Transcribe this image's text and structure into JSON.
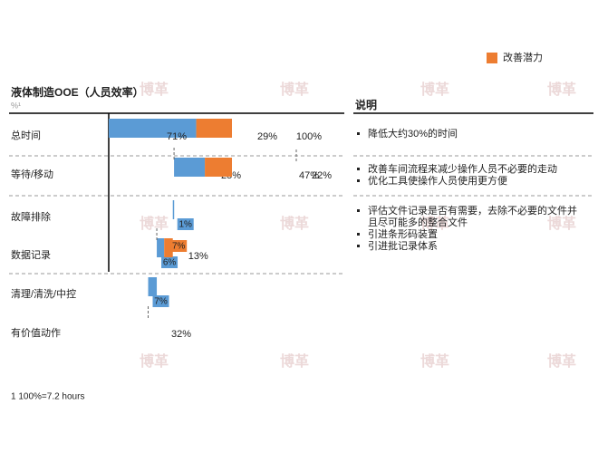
{
  "chart_data": {
    "type": "waterfall",
    "title": "液体制造OOE（人员效率）",
    "unit": "%¹",
    "categories": [
      "总时间",
      "等待/移动",
      "故障排除",
      "数据记录",
      "清理/清洗/中控",
      "有价值动作"
    ],
    "series": [
      {
        "color": "#5b9bd5",
        "values": [
          71,
          25,
          1,
          6,
          7,
          null
        ],
        "value_labels": [
          "71%",
          "25%",
          "1%",
          "6%",
          "7%",
          null
        ]
      },
      {
        "name": "改善潜力",
        "color": "#ed7d31",
        "values": [
          29,
          22,
          null,
          7,
          null,
          null
        ],
        "value_labels": [
          "29%",
          "22%",
          null,
          "7%",
          null,
          null
        ]
      }
    ],
    "totals": [
      100,
      47,
      null,
      13,
      null,
      32
    ],
    "total_labels": [
      "100%",
      "47%",
      null,
      "13%",
      null,
      "32%"
    ],
    "xlim": [
      0,
      100
    ],
    "footnote": "1 100%=7.2 hours"
  },
  "notes": {
    "title": "说明",
    "groups": [
      [
        "降低大约30%的时间"
      ],
      [
        "改善车间流程来减少操作人员不必要的走动",
        "优化工具使操作人员使用更方便"
      ],
      [
        "评估文件记录是否有需要，去除不必要的文件并",
        "且尽可能多的整合文件",
        "引进条形码装置",
        "引进批记录体系"
      ]
    ]
  },
  "watermark": "博革"
}
